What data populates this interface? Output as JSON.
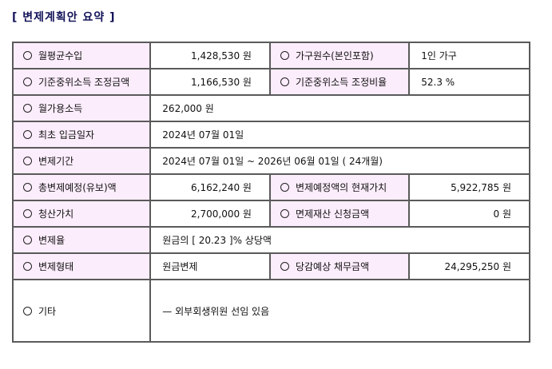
{
  "title": "[ 변제계획안 요약 ]",
  "rows": {
    "monthly_income": {
      "label": "월평균수입",
      "value": "1,428,530 원"
    },
    "household": {
      "label": "가구원수(본인포함)",
      "value": "1인 가구"
    },
    "adj_median": {
      "label": "기준중위소득 조정금액",
      "value": "1,166,530 원"
    },
    "adj_ratio": {
      "label": "기준중위소득 조정비율",
      "value": "52.3 %"
    },
    "available": {
      "label": "월가용소득",
      "value": "262,000 원"
    },
    "first_payment": {
      "label": "최초 입금일자",
      "value": "2024년 07월 01일"
    },
    "period": {
      "label": "변제기간",
      "value": "2024년 07월 01일 ~ 2026년 06월 01일 ( 24개월)"
    },
    "total": {
      "label": "총변제예정(유보)액",
      "value": "6,162,240 원"
    },
    "present_value": {
      "label": "변제예정액의 현재가치",
      "value": "5,922,785 원"
    },
    "liquidation": {
      "label": "청산가치",
      "value": "2,700,000 원"
    },
    "exempt": {
      "label": "면제재산 신청금액",
      "value": "0 원"
    },
    "rate": {
      "label": "변제율",
      "value": "원금의 [ 20.23 ]% 상당액"
    },
    "type": {
      "label": "변제형태",
      "value": "원금변제"
    },
    "debt": {
      "label": "당감예상 채무금액",
      "value": "24,295,250 원"
    },
    "other": {
      "label": "기타",
      "value": "— 외부회생위원 선임 있음"
    }
  }
}
